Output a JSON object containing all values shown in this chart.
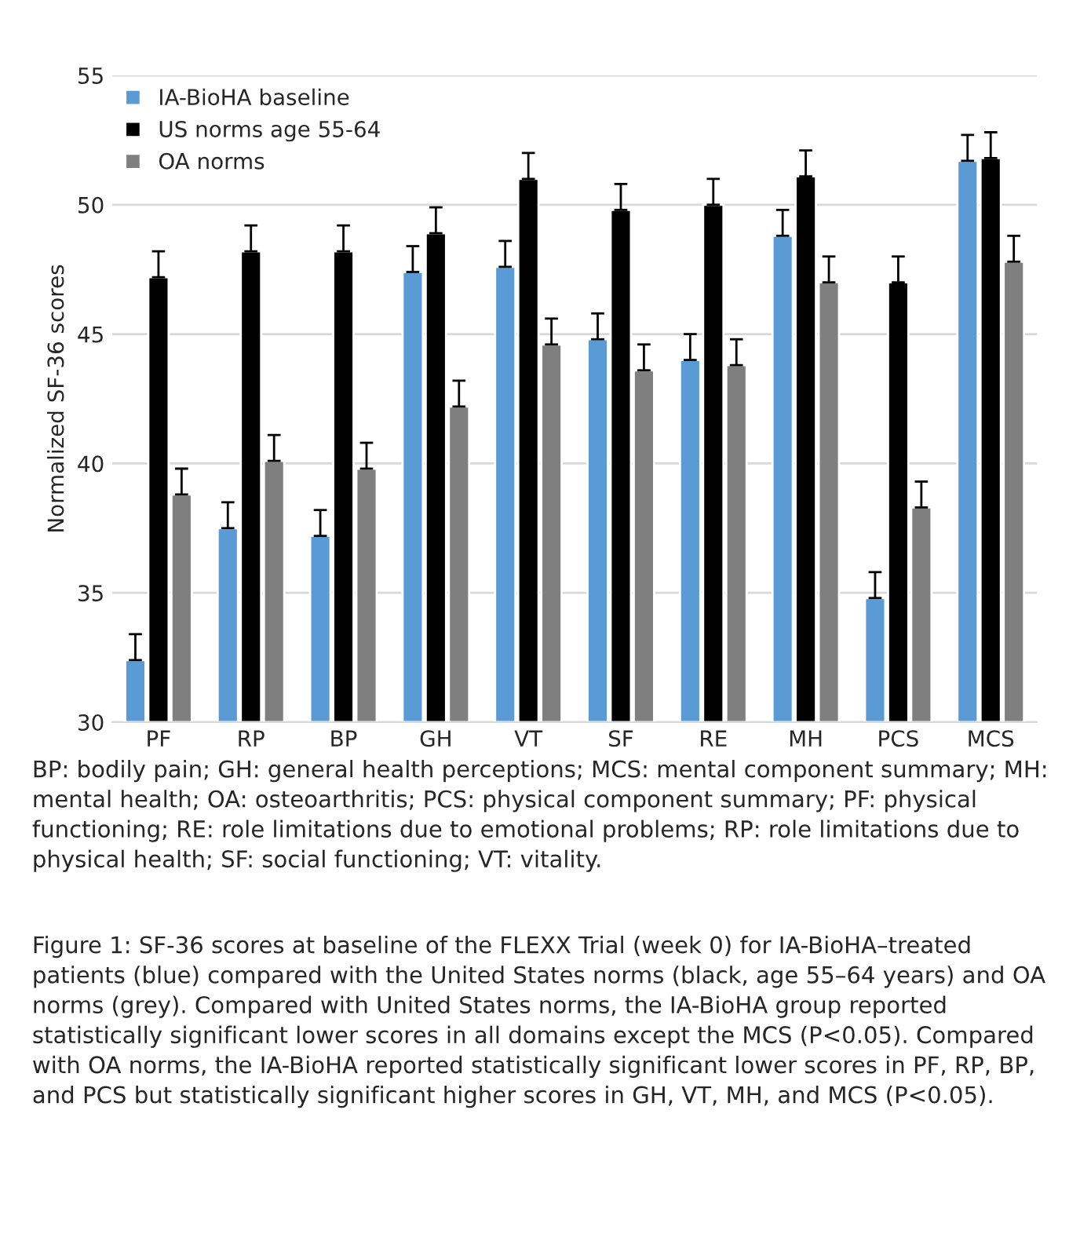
{
  "chart_data": {
    "type": "bar",
    "ylabel": "Normalized SF-36 scores",
    "categories": [
      "PF",
      "RP",
      "BP",
      "GH",
      "VT",
      "SF",
      "RE",
      "MH",
      "PCS",
      "MCS"
    ],
    "series": [
      {
        "name": "IA-BioHA baseline",
        "color": "#5b9bd5",
        "values": [
          32.4,
          37.5,
          37.2,
          47.4,
          47.6,
          44.8,
          44.0,
          48.8,
          34.8,
          51.7
        ],
        "errors": [
          [
            32.4,
            33.4
          ],
          [
            37.5,
            38.5
          ],
          [
            37.2,
            38.2
          ],
          [
            47.4,
            48.4
          ],
          [
            47.6,
            48.6
          ],
          [
            44.8,
            45.8
          ],
          [
            44.0,
            45.0
          ],
          [
            48.8,
            49.8
          ],
          [
            34.8,
            35.8
          ],
          [
            51.7,
            52.7
          ]
        ]
      },
      {
        "name": "US norms age 55-64",
        "color": "#000000",
        "values": [
          47.2,
          48.2,
          48.2,
          48.9,
          51.0,
          49.8,
          50.0,
          51.1,
          47.0,
          51.8
        ],
        "errors": [
          [
            47.2,
            48.2
          ],
          [
            48.2,
            49.2
          ],
          [
            48.2,
            49.2
          ],
          [
            48.9,
            49.9
          ],
          [
            51.0,
            52.0
          ],
          [
            49.8,
            50.8
          ],
          [
            50.0,
            51.0
          ],
          [
            51.1,
            52.1
          ],
          [
            47.0,
            48.0
          ],
          [
            51.8,
            52.8
          ]
        ]
      },
      {
        "name": "OA norms",
        "color": "#7f7f7f",
        "values": [
          38.8,
          40.1,
          39.8,
          42.2,
          44.6,
          43.6,
          43.8,
          47.0,
          38.3,
          47.8
        ],
        "errors": [
          [
            38.8,
            39.8
          ],
          [
            40.1,
            41.1
          ],
          [
            39.8,
            40.8
          ],
          [
            42.2,
            43.2
          ],
          [
            44.6,
            45.6
          ],
          [
            43.6,
            44.6
          ],
          [
            43.8,
            44.8
          ],
          [
            47.0,
            48.0
          ],
          [
            38.3,
            39.3
          ],
          [
            47.8,
            48.8
          ]
        ]
      }
    ],
    "ylim": [
      30,
      55
    ],
    "yticks": [
      30,
      35,
      40,
      45,
      50,
      55
    ],
    "grid": "y",
    "legend": "top left",
    "annotations": [
      "BP: bodily pain; GH: general health perceptions; MCS: mental component summary; MH: mental health; OA: osteoarthritis; PCS: physical component summary; PF: physical functioning; RE: role limitations due to emotional problems; RP: role limitations due to physical health; SF: social functioning; VT: vitality.",
      "Figure 1: SF-36 scores at baseline of the FLEXX Trial (week 0) for IA-BioHA–treated patients (blue) compared with the United States norms (black, age 55–64 years) and OA norms (grey). Compared with United States norms, the IA-BioHA group reported statistically significant lower scores in all domains except the MCS (P<0.05). Compared with OA norms, the IA-BioHA reported statistically significant lower scores in PF, RP, BP, and PCS but statistically significant higher scores in GH, VT, MH, and MCS (P<0.05)."
    ]
  }
}
